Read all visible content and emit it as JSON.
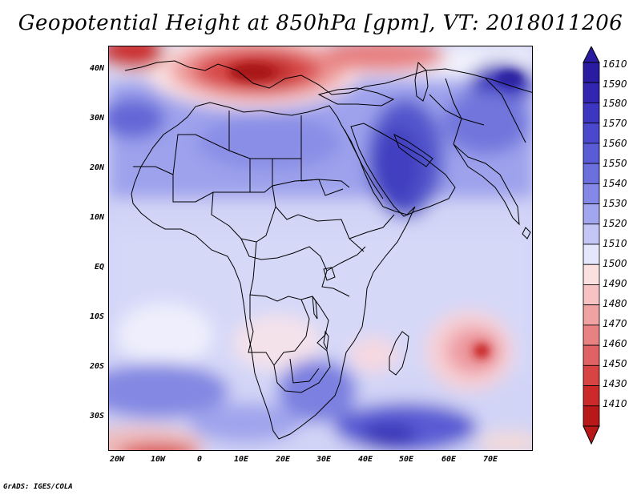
{
  "title": "Geopotential Height at 850hPa [gpm], VT: 2018011206",
  "credit": "GrADS: IGES/COLA",
  "lat_labels": [
    "40N",
    "30N",
    "20N",
    "10N",
    "EQ",
    "10S",
    "20S",
    "30S"
  ],
  "lon_labels": [
    "20W",
    "10W",
    "0",
    "10E",
    "20E",
    "30E",
    "40E",
    "50E",
    "60E",
    "70E"
  ],
  "colorbar": {
    "labels": [
      "1610",
      "1590",
      "1580",
      "1570",
      "1560",
      "1550",
      "1540",
      "1530",
      "1520",
      "1510",
      "1500",
      "1490",
      "1480",
      "1470",
      "1460",
      "1450",
      "1430",
      "1410"
    ],
    "colors": [
      "#2a1ca0",
      "#3226b0",
      "#3c36c0",
      "#4a48cc",
      "#5a5cd6",
      "#6c70de",
      "#8488e6",
      "#a2a6ee",
      "#c4c6f6",
      "#e4e6fc",
      "#fbe0e0",
      "#f6c2c2",
      "#f0a2a2",
      "#e88282",
      "#e06262",
      "#d84444",
      "#cc2a2a",
      "#b81818"
    ]
  }
}
